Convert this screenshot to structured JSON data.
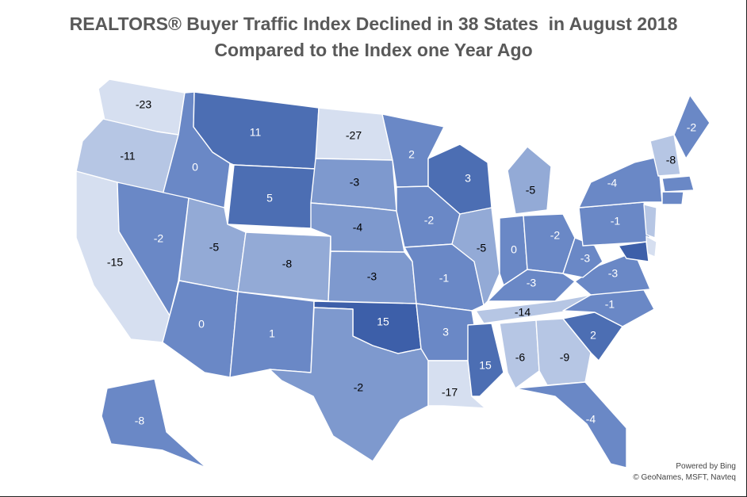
{
  "title_line1": "REALTORS® Buyer Traffic Index Declined in 38 States  in August 2018",
  "title_line2": "Compared to the Index one Year Ago",
  "credits": {
    "powered": "Powered by Bing",
    "sources": "© GeoNames, MSFT, Navteq"
  },
  "colors": {
    "lightest": "#d6dff0",
    "light": "#b6c6e4",
    "medium_light": "#93aad6",
    "medium": "#7e99ce",
    "medium_dark": "#6a88c6",
    "dark": "#4c6eb3",
    "darkest": "#3d5fa9"
  },
  "states": [
    {
      "name": "Washington",
      "value": "-23"
    },
    {
      "name": "Oregon",
      "value": "-11"
    },
    {
      "name": "California",
      "value": "-15"
    },
    {
      "name": "Idaho",
      "value": "0"
    },
    {
      "name": "Nevada",
      "value": "-2"
    },
    {
      "name": "Montana",
      "value": "11"
    },
    {
      "name": "Wyoming",
      "value": "5"
    },
    {
      "name": "Utah",
      "value": "-5"
    },
    {
      "name": "Arizona",
      "value": "0"
    },
    {
      "name": "Colorado",
      "value": "-8"
    },
    {
      "name": "New Mexico",
      "value": "1"
    },
    {
      "name": "North Dakota",
      "value": "-27"
    },
    {
      "name": "South Dakota",
      "value": "-3"
    },
    {
      "name": "Nebraska",
      "value": "-4"
    },
    {
      "name": "Kansas",
      "value": "-3"
    },
    {
      "name": "Oklahoma",
      "value": "15"
    },
    {
      "name": "Texas",
      "value": "-2"
    },
    {
      "name": "Minnesota",
      "value": "2"
    },
    {
      "name": "Iowa",
      "value": "-2"
    },
    {
      "name": "Missouri",
      "value": "-1"
    },
    {
      "name": "Arkansas",
      "value": "3"
    },
    {
      "name": "Louisiana",
      "value": "-17"
    },
    {
      "name": "Wisconsin",
      "value": "3"
    },
    {
      "name": "Illinois",
      "value": "-5"
    },
    {
      "name": "Michigan",
      "value": "-5"
    },
    {
      "name": "Indiana",
      "value": "0"
    },
    {
      "name": "Ohio",
      "value": "-2"
    },
    {
      "name": "Kentucky",
      "value": "-3"
    },
    {
      "name": "Tennessee",
      "value": "-14"
    },
    {
      "name": "Mississippi",
      "value": "15"
    },
    {
      "name": "Alabama",
      "value": "-6"
    },
    {
      "name": "Georgia",
      "value": "-9"
    },
    {
      "name": "Florida",
      "value": "-4"
    },
    {
      "name": "South Carolina",
      "value": "2"
    },
    {
      "name": "North Carolina",
      "value": "-1"
    },
    {
      "name": "Virginia",
      "value": "-3"
    },
    {
      "name": "West Virginia",
      "value": "-3"
    },
    {
      "name": "Pennsylvania",
      "value": "-1"
    },
    {
      "name": "New York",
      "value": "-4"
    },
    {
      "name": "Vermont/New Hampshire",
      "value": "-8"
    },
    {
      "name": "Maine",
      "value": "-2"
    },
    {
      "name": "Alaska",
      "value": "-8"
    },
    {
      "name": "Massachusetts",
      "value": ""
    },
    {
      "name": "Connecticut",
      "value": ""
    },
    {
      "name": "New Jersey",
      "value": ""
    },
    {
      "name": "Delaware",
      "value": ""
    },
    {
      "name": "Maryland",
      "value": ""
    }
  ]
}
